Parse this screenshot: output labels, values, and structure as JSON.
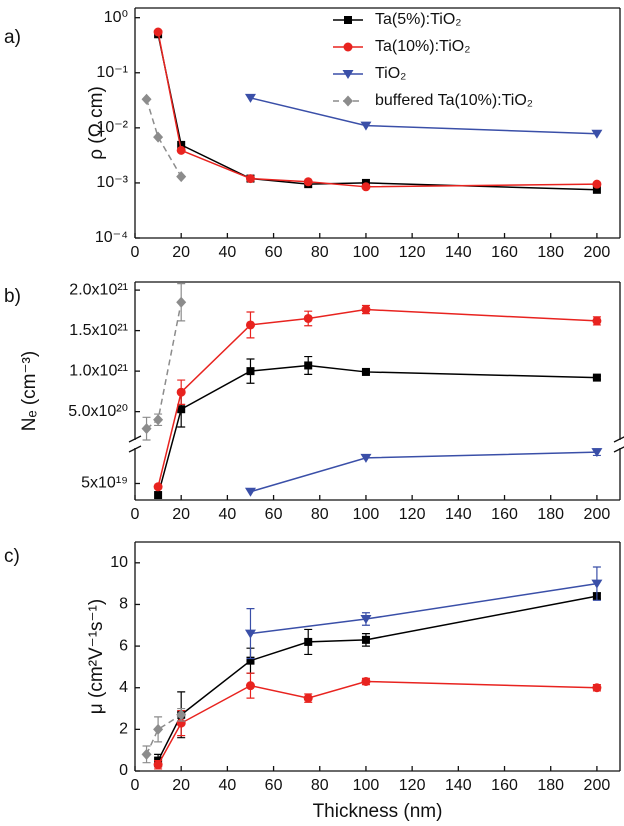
{
  "chart_data": [
    {
      "type": "line",
      "panel_label": "a)",
      "y_label": "ρ (Ω cm)",
      "log_y": true,
      "xlim": [
        0,
        210
      ],
      "xticks": [
        0,
        20,
        40,
        60,
        80,
        100,
        120,
        140,
        160,
        180,
        200
      ],
      "ylim": [
        0.0001,
        1.5
      ],
      "yticks": [
        {
          "value": 1,
          "label": "10⁰"
        },
        {
          "value": 0.1,
          "label": "10⁻¹"
        },
        {
          "value": 0.01,
          "label": "10⁻²"
        },
        {
          "value": 0.001,
          "label": "10⁻³"
        },
        {
          "value": 0.0001,
          "label": "10⁻⁴"
        }
      ],
      "legend": "upper right",
      "series": [
        {
          "name": "Ta(5%):TiO₂",
          "color": "#000000",
          "marker": "square",
          "x": [
            10,
            20,
            50,
            75,
            100,
            200
          ],
          "values": [
            0.5,
            0.0049,
            0.0012,
            0.00095,
            0.001,
            0.00075
          ]
        },
        {
          "name": "Ta(10%):TiO₂",
          "color": "#e8231f",
          "marker": "circle",
          "x": [
            10,
            20,
            50,
            75,
            100,
            200
          ],
          "values": [
            0.55,
            0.0039,
            0.0012,
            0.00105,
            0.00085,
            0.00095
          ]
        },
        {
          "name": "TiO₂",
          "color": "#3a4fa8",
          "marker": "triangle-down",
          "x": [
            50,
            100,
            200
          ],
          "values": [
            0.035,
            0.011,
            0.0078
          ]
        },
        {
          "name": "buffered Ta(10%):TiO₂",
          "color": "#8c8c8c",
          "marker": "diamond",
          "dashed": true,
          "x": [
            5,
            10,
            20
          ],
          "values": [
            0.033,
            0.0068,
            0.0013
          ]
        }
      ]
    },
    {
      "type": "line",
      "panel_label": "b)",
      "y_label": "Nₑ (cm⁻³)",
      "xlim": [
        0,
        210
      ],
      "xticks": [
        0,
        20,
        40,
        60,
        80,
        100,
        120,
        140,
        160,
        180,
        200
      ],
      "ylim": [
        3e+19,
        2.1e+21
      ],
      "ybreak": [
        9.3e+19,
        1.5e+20
      ],
      "yticks": [
        {
          "value": 2e+21,
          "label": "2.0x10²¹"
        },
        {
          "value": 1.5e+21,
          "label": "1.5x10²¹"
        },
        {
          "value": 1e+21,
          "label": "1.0x10²¹"
        },
        {
          "value": 5e+20,
          "label": "5.0x10²⁰"
        },
        {
          "value": 5e+19,
          "label": "5x10¹⁹"
        }
      ],
      "series": [
        {
          "color": "#000000",
          "marker": "square",
          "x": [
            10,
            20,
            50,
            75,
            100,
            200
          ],
          "values": [
            3.6e+19,
            5.3e+20,
            1e+21,
            1.07e+21,
            9.9e+20,
            9.2e+20
          ],
          "errors": [
            null,
            2.2e+20,
            1.5e+20,
            1.1e+20,
            2e+19,
            2e+19
          ]
        },
        {
          "color": "#e8231f",
          "marker": "circle",
          "x": [
            10,
            20,
            50,
            75,
            100,
            200
          ],
          "values": [
            4.6e+19,
            7.4e+20,
            1.57e+21,
            1.65e+21,
            1.76e+21,
            1.62e+21
          ],
          "errors": [
            null,
            1.5e+20,
            1.6e+20,
            9e+19,
            5e+19,
            5e+19
          ]
        },
        {
          "color": "#3a4fa8",
          "marker": "triangle-down",
          "x": [
            50,
            100,
            200
          ],
          "values": [
            4e+19,
            8.1e+19,
            8.8e+19
          ],
          "errors": [
            null,
            null,
            4e+18
          ]
        },
        {
          "color": "#8c8c8c",
          "marker": "diamond",
          "dashed": true,
          "x": [
            5,
            10,
            20
          ],
          "values": [
            2.9e+20,
            4e+20,
            1.85e+21
          ],
          "errors": [
            1.4e+20,
            7e+19,
            2.3e+20
          ]
        }
      ]
    },
    {
      "type": "line",
      "panel_label": "c)",
      "y_label": "μ (cm²V⁻¹s⁻¹)",
      "x_label": "Thickness (nm)",
      "xlim": [
        0,
        210
      ],
      "xticks": [
        0,
        20,
        40,
        60,
        80,
        100,
        120,
        140,
        160,
        180,
        200
      ],
      "ylim": [
        0,
        11
      ],
      "yticks": [
        0,
        2,
        4,
        6,
        8,
        10
      ],
      "series": [
        {
          "color": "#000000",
          "marker": "square",
          "x": [
            10,
            20,
            50,
            75,
            100,
            200
          ],
          "values": [
            0.5,
            2.7,
            5.3,
            6.2,
            6.3,
            8.4
          ],
          "errors": [
            0.3,
            1.1,
            0.6,
            0.6,
            0.3,
            0.15
          ]
        },
        {
          "color": "#e8231f",
          "marker": "circle",
          "x": [
            10,
            20,
            50,
            75,
            100,
            200
          ],
          "values": [
            0.3,
            2.3,
            4.1,
            3.5,
            4.3,
            4.0
          ],
          "errors": [
            0.2,
            0.6,
            0.6,
            0.2,
            0.15,
            0.15
          ]
        },
        {
          "color": "#3a4fa8",
          "marker": "triangle-down",
          "x": [
            50,
            100,
            200
          ],
          "values": [
            6.6,
            7.3,
            9.0
          ],
          "errors": [
            1.2,
            0.3,
            0.8
          ]
        },
        {
          "color": "#8c8c8c",
          "marker": "diamond",
          "dashed": true,
          "x": [
            5,
            10,
            20
          ],
          "values": [
            0.8,
            2.0,
            2.7
          ],
          "errors": [
            0.4,
            0.6,
            0.3
          ]
        }
      ]
    }
  ]
}
